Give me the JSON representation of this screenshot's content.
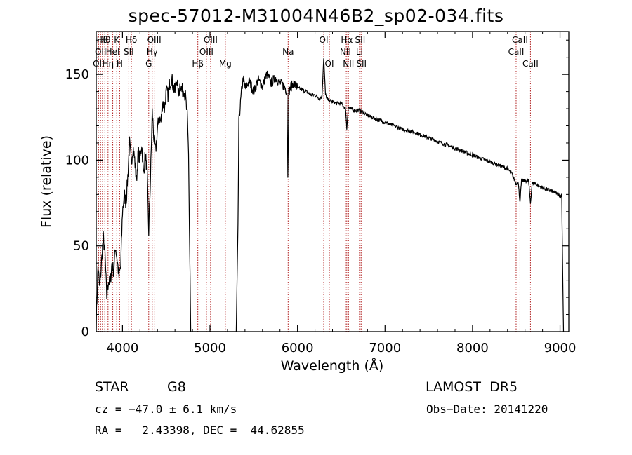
{
  "chart_data": {
    "type": "line",
    "title": "spec-57012-M31004N46B2_sp02-034.fits",
    "xlabel": "Wavelength (Å)",
    "ylabel": "Flux (relative)",
    "xlim": [
      3700,
      9100
    ],
    "ylim": [
      0,
      175
    ],
    "x_ticks": [
      4000,
      5000,
      6000,
      7000,
      8000,
      9000
    ],
    "y_ticks": [
      0,
      50,
      100,
      150
    ],
    "grid": false,
    "series": [
      {
        "name": "",
        "points": [
          [
            3700,
            5
          ],
          [
            3720,
            38
          ],
          [
            3740,
            25
          ],
          [
            3760,
            40
          ],
          [
            3780,
            55
          ],
          [
            3800,
            45
          ],
          [
            3820,
            20
          ],
          [
            3840,
            30
          ],
          [
            3860,
            28
          ],
          [
            3880,
            40
          ],
          [
            3900,
            35
          ],
          [
            3920,
            50
          ],
          [
            3940,
            42
          ],
          [
            3960,
            32
          ],
          [
            3980,
            38
          ],
          [
            4000,
            70
          ],
          [
            4020,
            80
          ],
          [
            4040,
            75
          ],
          [
            4060,
            90
          ],
          [
            4080,
            110
          ],
          [
            4100,
            98
          ],
          [
            4120,
            108
          ],
          [
            4140,
            100
          ],
          [
            4160,
            88
          ],
          [
            4180,
            105
          ],
          [
            4200,
            100
          ],
          [
            4220,
            110
          ],
          [
            4240,
            92
          ],
          [
            4260,
            103
          ],
          [
            4280,
            95
          ],
          [
            4300,
            58
          ],
          [
            4320,
            90
          ],
          [
            4340,
            128
          ],
          [
            4360,
            112
          ],
          [
            4380,
            105
          ],
          [
            4400,
            118
          ],
          [
            4420,
            125
          ],
          [
            4440,
            122
          ],
          [
            4460,
            135
          ],
          [
            4480,
            130
          ],
          [
            4500,
            140
          ],
          [
            4520,
            138
          ],
          [
            4540,
            145
          ],
          [
            4560,
            148
          ],
          [
            4580,
            143
          ],
          [
            4600,
            140
          ],
          [
            4620,
            148
          ],
          [
            4640,
            138
          ],
          [
            4660,
            145
          ],
          [
            4680,
            140
          ],
          [
            4700,
            142
          ],
          [
            4720,
            137
          ],
          [
            4740,
            125
          ],
          [
            4755,
            105
          ],
          [
            4765,
            60
          ],
          [
            4780,
            0
          ],
          [
            5300,
            0
          ],
          [
            5320,
            60
          ],
          [
            5330,
            122
          ],
          [
            5360,
            140
          ],
          [
            5380,
            148
          ],
          [
            5400,
            142
          ],
          [
            5450,
            146
          ],
          [
            5500,
            140
          ],
          [
            5550,
            147
          ],
          [
            5600,
            143
          ],
          [
            5650,
            150
          ],
          [
            5700,
            145
          ],
          [
            5750,
            148
          ],
          [
            5800,
            145
          ],
          [
            5850,
            143
          ],
          [
            5880,
            140
          ],
          [
            5890,
            92
          ],
          [
            5900,
            140
          ],
          [
            5950,
            145
          ],
          [
            6000,
            142
          ],
          [
            6050,
            141
          ],
          [
            6100,
            140
          ],
          [
            6150,
            138
          ],
          [
            6200,
            138
          ],
          [
            6250,
            136
          ],
          [
            6280,
            137
          ],
          [
            6300,
            160
          ],
          [
            6320,
            138
          ],
          [
            6350,
            135
          ],
          [
            6400,
            134
          ],
          [
            6450,
            133
          ],
          [
            6500,
            133
          ],
          [
            6550,
            130
          ],
          [
            6563,
            118
          ],
          [
            6580,
            131
          ],
          [
            6600,
            130
          ],
          [
            6650,
            129
          ],
          [
            6700,
            129
          ],
          [
            6750,
            128
          ],
          [
            6800,
            126
          ],
          [
            6900,
            124
          ],
          [
            7000,
            122
          ],
          [
            7100,
            120
          ],
          [
            7200,
            118
          ],
          [
            7300,
            117
          ],
          [
            7400,
            115
          ],
          [
            7500,
            113
          ],
          [
            7600,
            111
          ],
          [
            7700,
            109
          ],
          [
            7800,
            107
          ],
          [
            7900,
            105
          ],
          [
            8000,
            103
          ],
          [
            8100,
            101
          ],
          [
            8200,
            99
          ],
          [
            8300,
            97
          ],
          [
            8400,
            95
          ],
          [
            8450,
            92
          ],
          [
            8500,
            86
          ],
          [
            8520,
            88
          ],
          [
            8542,
            76
          ],
          [
            8560,
            88
          ],
          [
            8600,
            88
          ],
          [
            8640,
            88
          ],
          [
            8662,
            75
          ],
          [
            8680,
            86
          ],
          [
            8700,
            87
          ],
          [
            8750,
            85
          ],
          [
            8800,
            84
          ],
          [
            8850,
            83
          ],
          [
            8900,
            82
          ],
          [
            8950,
            81
          ],
          [
            9000,
            79
          ],
          [
            9020,
            80
          ],
          [
            9030,
            35
          ],
          [
            9040,
            0
          ]
        ]
      }
    ],
    "lines": [
      {
        "x": 3727,
        "label": "OII",
        "row": 2
      },
      {
        "x": 3750,
        "label": "OII",
        "row": 1
      },
      {
        "x": 3771,
        "label": "Hθ",
        "row": 0
      },
      {
        "x": 3798,
        "label": "Hθ",
        "row": 0
      },
      {
        "x": 3835,
        "label": "Hη",
        "row": 2
      },
      {
        "x": 3889,
        "label": "HeI",
        "row": 1
      },
      {
        "x": 3934,
        "label": "K",
        "row": 0
      },
      {
        "x": 3968,
        "label": "H",
        "row": 2
      },
      {
        "x": 4072,
        "label": "SII",
        "row": 1
      },
      {
        "x": 4102,
        "label": "Hδ",
        "row": 0
      },
      {
        "x": 4300,
        "label": "G",
        "row": 2
      },
      {
        "x": 4340,
        "label": "Hγ",
        "row": 1
      },
      {
        "x": 4363,
        "label": "OIII",
        "row": 0
      },
      {
        "x": 4861,
        "label": "Hβ",
        "row": 2
      },
      {
        "x": 4959,
        "label": "OIII",
        "row": 1
      },
      {
        "x": 5007,
        "label": "OIII",
        "row": 0
      },
      {
        "x": 5175,
        "label": "Mg",
        "row": 2
      },
      {
        "x": 5893,
        "label": "Na",
        "row": 1
      },
      {
        "x": 6300,
        "label": "OI",
        "row": 0
      },
      {
        "x": 6364,
        "label": "OI",
        "row": 2
      },
      {
        "x": 6548,
        "label": "NII",
        "row": 1
      },
      {
        "x": 6563,
        "label": "Hα",
        "row": 0
      },
      {
        "x": 6583,
        "label": "NII",
        "row": 2
      },
      {
        "x": 6708,
        "label": "Li",
        "row": 1
      },
      {
        "x": 6716,
        "label": "SII",
        "row": 0
      },
      {
        "x": 6731,
        "label": "SII",
        "row": 2
      },
      {
        "x": 8498,
        "label": "CaII",
        "row": 1
      },
      {
        "x": 8542,
        "label": "CaII",
        "row": 0
      },
      {
        "x": 8662,
        "label": "CaII",
        "row": 2
      }
    ],
    "line_color": "#b22222"
  },
  "info": {
    "class": "STAR",
    "subclass": "G8",
    "survey": "LAMOST  DR5",
    "cz": "cz = −47.0 ± 6.1 km/s",
    "obs_date": "Obs−Date: 20141220",
    "coords": "RA =   2.43398, DEC =  44.62855"
  }
}
